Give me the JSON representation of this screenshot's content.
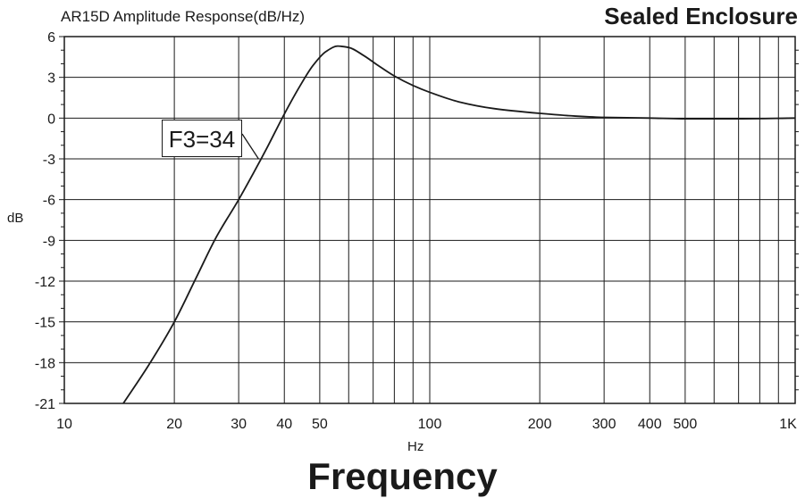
{
  "chart_data": {
    "type": "line",
    "title": "AR15D  Amplitude Response(dB/Hz)",
    "subtitle": "Sealed Enclosure",
    "xlabel": "Hz",
    "ylabel": "dB",
    "footer_label": "Frequency",
    "x_scale": "log",
    "xlim": [
      10,
      1000
    ],
    "ylim": [
      -21,
      6
    ],
    "grid": true,
    "x_ticks": [
      {
        "value": 10,
        "label": "10"
      },
      {
        "value": 20,
        "label": "20"
      },
      {
        "value": 30,
        "label": "30"
      },
      {
        "value": 40,
        "label": "40"
      },
      {
        "value": 50,
        "label": "50"
      },
      {
        "value": 100,
        "label": "100"
      },
      {
        "value": 200,
        "label": "200"
      },
      {
        "value": 300,
        "label": "300"
      },
      {
        "value": 400,
        "label": "400"
      },
      {
        "value": 500,
        "label": "500"
      },
      {
        "value": 1000,
        "label": "1K"
      }
    ],
    "y_ticks": [
      6,
      3,
      0,
      -3,
      -6,
      -9,
      -12,
      -15,
      -18,
      -21
    ],
    "annotation": {
      "text": "F3=34",
      "x": 34,
      "y": -3
    },
    "series": [
      {
        "color": "#1a1a1a",
        "x": [
          14.5,
          17,
          20,
          23,
          26,
          30,
          33,
          36,
          40,
          44,
          48,
          52,
          56,
          60,
          66,
          72,
          80,
          90,
          100,
          120,
          150,
          200,
          250,
          300,
          400,
          500,
          700,
          1000
        ],
        "y": [
          -21,
          -18.2,
          -15,
          -11.7,
          -8.8,
          -6,
          -4,
          -2.1,
          0.3,
          2.3,
          3.9,
          4.9,
          5.3,
          5.2,
          4.6,
          3.9,
          3.1,
          2.4,
          1.9,
          1.2,
          0.7,
          0.35,
          0.15,
          0.05,
          0,
          -0.05,
          -0.05,
          0
        ]
      }
    ]
  }
}
